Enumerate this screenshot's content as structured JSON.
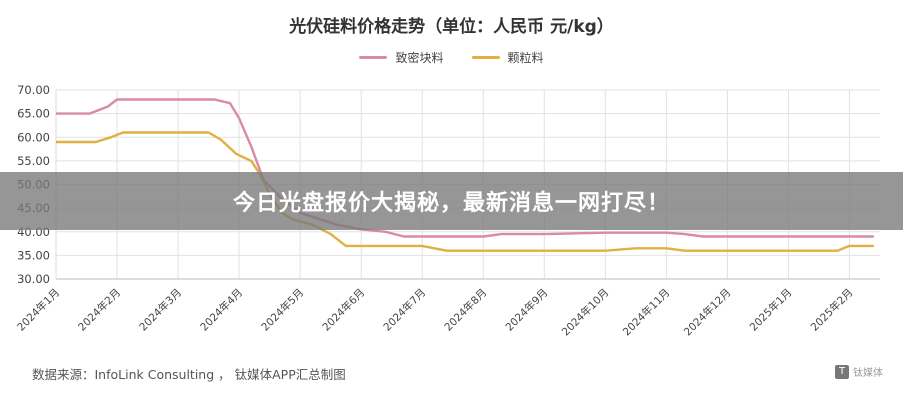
{
  "chart_data": {
    "type": "line",
    "title": "光伏硅料价格走势（单位：人民币 元/kg）",
    "ylim": [
      30,
      70
    ],
    "yticks": [
      "70.00",
      "65.00",
      "60.00",
      "55.00",
      "50.00",
      "45.00",
      "40.00",
      "35.00",
      "30.00"
    ],
    "categories": [
      "2024年1月",
      "2024年2月",
      "2024年3月",
      "2024年4月",
      "2024年5月",
      "2024年6月",
      "2024年7月",
      "2024年8月",
      "2024年9月",
      "2024年10月",
      "2024年11月",
      "2024年12月",
      "2025年1月",
      "2025年2月"
    ],
    "grid": true,
    "legend_position": "top-center",
    "series": [
      {
        "name": "致密块料",
        "color": "#d98aa8",
        "points": [
          [
            0,
            65
          ],
          [
            0.55,
            65
          ],
          [
            0.85,
            66.5
          ],
          [
            1.0,
            68
          ],
          [
            1.3,
            68
          ],
          [
            2.0,
            68
          ],
          [
            2.6,
            68
          ],
          [
            2.85,
            67.2
          ],
          [
            3.0,
            64
          ],
          [
            3.2,
            58
          ],
          [
            3.4,
            51
          ],
          [
            3.7,
            47
          ],
          [
            4.0,
            44
          ],
          [
            4.6,
            41.5
          ],
          [
            5.0,
            40.5
          ],
          [
            5.4,
            40
          ],
          [
            5.7,
            39
          ],
          [
            6.0,
            39
          ],
          [
            7.0,
            39
          ],
          [
            7.3,
            39.5
          ],
          [
            8.0,
            39.5
          ],
          [
            9.0,
            39.8
          ],
          [
            10.0,
            39.8
          ],
          [
            10.3,
            39.5
          ],
          [
            10.6,
            39
          ],
          [
            11.0,
            39
          ],
          [
            12.0,
            39
          ],
          [
            13.0,
            39
          ],
          [
            13.4,
            39
          ]
        ]
      },
      {
        "name": "颗粒料",
        "color": "#e0b040",
        "points": [
          [
            0,
            59
          ],
          [
            0.65,
            59
          ],
          [
            0.9,
            60
          ],
          [
            1.1,
            61
          ],
          [
            1.6,
            61
          ],
          [
            2.0,
            61
          ],
          [
            2.5,
            61
          ],
          [
            2.7,
            59.5
          ],
          [
            2.95,
            56.5
          ],
          [
            3.2,
            55
          ],
          [
            3.35,
            52
          ],
          [
            3.5,
            48
          ],
          [
            3.7,
            44
          ],
          [
            3.9,
            42.5
          ],
          [
            4.2,
            41.5
          ],
          [
            4.5,
            39.5
          ],
          [
            4.75,
            37
          ],
          [
            5.0,
            37
          ],
          [
            6.0,
            37
          ],
          [
            6.2,
            36.5
          ],
          [
            6.4,
            36
          ],
          [
            7.0,
            36
          ],
          [
            8.0,
            36
          ],
          [
            9.0,
            36
          ],
          [
            9.5,
            36.5
          ],
          [
            10.0,
            36.5
          ],
          [
            10.3,
            36
          ],
          [
            11.0,
            36
          ],
          [
            12.0,
            36
          ],
          [
            12.8,
            36
          ],
          [
            13.0,
            37
          ],
          [
            13.4,
            37
          ]
        ]
      }
    ]
  },
  "legend": [
    {
      "label": "致密块料",
      "color": "#d98aa8"
    },
    {
      "label": "颗粒料",
      "color": "#e0b040"
    }
  ],
  "source_text": "数据来源：InfoLink Consulting ， 钛媒体APP汇总制图",
  "watermark_text": "钛媒体",
  "banner_text": "今日光盘报价大揭秘，最新消息一网打尽！"
}
